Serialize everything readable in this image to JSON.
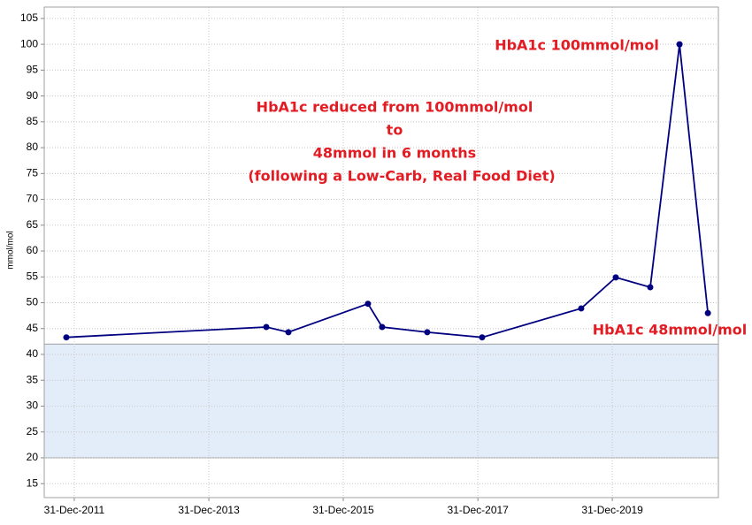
{
  "chart_data": {
    "type": "line",
    "y_label": "mmol/mol",
    "x": [
      "2011-11-18",
      "2014-11-08",
      "2015-03-08",
      "2016-05-13",
      "2016-07-29",
      "2017-03-31",
      "2018-01-23",
      "2019-07-15",
      "2020-01-19",
      "2020-07-24",
      "2020-12-30",
      "2021-06-02"
    ],
    "series": [
      {
        "color": "#000080",
        "values": [
          43.3,
          45.3,
          44.3,
          49.8,
          45.3,
          44.3,
          43.3,
          48.9,
          54.9,
          53,
          100,
          48
        ]
      }
    ],
    "xlim": [
      "2011-07-21",
      "2021-07-29"
    ],
    "xticks": [
      {
        "value": "2011-12-31",
        "label": "31-Dec-2011"
      },
      {
        "value": "2013-12-31",
        "label": "31-Dec-2013"
      },
      {
        "value": "2015-12-31",
        "label": "31-Dec-2015"
      },
      {
        "value": "2017-12-31",
        "label": "31-Dec-2017"
      },
      {
        "value": "2019-12-31",
        "label": "31-Dec-2019"
      }
    ],
    "ylim": [
      12.3,
      107.2
    ],
    "yticks": [
      15,
      20,
      25,
      30,
      35,
      40,
      45,
      50,
      55,
      60,
      65,
      70,
      75,
      80,
      85,
      90,
      95,
      100,
      105
    ],
    "grid": true,
    "band": [
      20,
      42
    ],
    "band_color": "#e3ecf9",
    "annotations": [
      "HbA1c 100mmol/mol",
      "HbA1c reduced from 100mmol/mol",
      "to",
      "48mmol in 6 months",
      "(following a Low-Carb, Real Food Diet)",
      "HbA1c 48mmol/mol"
    ]
  }
}
